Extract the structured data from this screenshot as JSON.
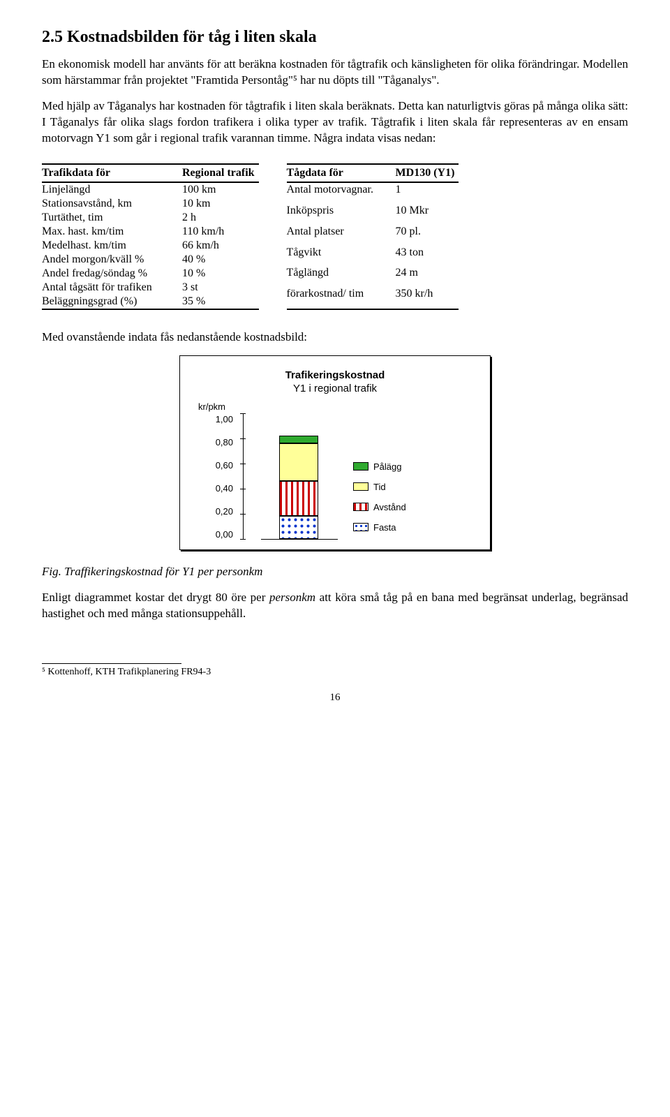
{
  "heading": "2.5  Kostnadsbilden för tåg i liten skala",
  "para1": "En ekonomisk modell har använts för att beräkna kostnaden för tågtrafik och känsligheten för olika förändringar. Modellen som härstammar från projektet \"Framtida Persontåg\"⁵ har nu döpts till \"Tåganalys\".",
  "para2": "Med hjälp av Tåganalys har kostnaden för tågtrafik i liten skala beräknats. Detta kan naturligtvis göras på många olika sätt: I Tåganalys får olika slags fordon trafikera i olika typer av trafik. Tågtrafik i liten skala får representeras av en ensam motorvagn Y1 som går i regional trafik varannan timme. Några indata visas nedan:",
  "table_left": {
    "header": [
      "Trafikdata för",
      "Regional trafik"
    ],
    "rows": [
      [
        "Linjelängd",
        "100 km"
      ],
      [
        "Stationsavstånd, km",
        "10 km"
      ],
      [
        "Turtäthet, tim",
        "2 h"
      ],
      [
        "Max. hast. km/tim",
        "110 km/h"
      ],
      [
        "Medelhast. km/tim",
        "66 km/h"
      ],
      [
        "Andel morgon/kväll %",
        "40 %"
      ],
      [
        "Andel fredag/söndag %",
        "10 %"
      ],
      [
        "Antal tågsätt för trafiken",
        "3 st"
      ],
      [
        "Beläggningsgrad (%)",
        "35 %"
      ]
    ]
  },
  "table_right": {
    "header": [
      "Tågdata för",
      "MD130 (Y1)"
    ],
    "rows": [
      [
        "Antal motorvagnar.",
        "1"
      ],
      [
        "Inköpspris",
        "10 Mkr"
      ],
      [
        "Antal platser",
        "70 pl."
      ],
      [
        "Tågvikt",
        "43 ton"
      ],
      [
        "Tåglängd",
        "24 m"
      ],
      [
        "förarkostnad/ tim",
        "350 kr/h"
      ]
    ]
  },
  "para3": "Med ovanstående indata fås nedanstående kostnadsbild:",
  "chart": {
    "title_bold": "Trafikeringskostnad",
    "title_sub": "Y1 i regional trafik",
    "y_axis_label": "kr/pkm",
    "y_ticks": [
      "1,00",
      "0,80",
      "0,60",
      "0,40",
      "0,20",
      "0,00"
    ],
    "y_max": 1.0,
    "segments": [
      {
        "label": "Pålägg",
        "value": 0.06,
        "color": "#2faa2f",
        "pattern": "solid"
      },
      {
        "label": "Tid",
        "value": 0.3,
        "color": "#ffff99",
        "pattern": "solid"
      },
      {
        "label": "Avstånd",
        "value": 0.28,
        "color": "#ffffff",
        "pattern": "stripes",
        "stripe": "#cc0000"
      },
      {
        "label": "Fasta",
        "value": 0.18,
        "color": "#ffffff",
        "pattern": "dots",
        "dot": "#0033cc"
      }
    ]
  },
  "fig_caption": "Fig. Traffikeringskostnad för Y1 per personkm",
  "para4": "Enligt diagrammet kostar det drygt 80 öre per personkm att köra små tåg på en bana med begränsat underlag, begränsad hastighet och med många stationsuppehåll.",
  "footnote": "⁵ Kottenhoff, KTH Trafikplanering FR94-3",
  "page_number": "16"
}
